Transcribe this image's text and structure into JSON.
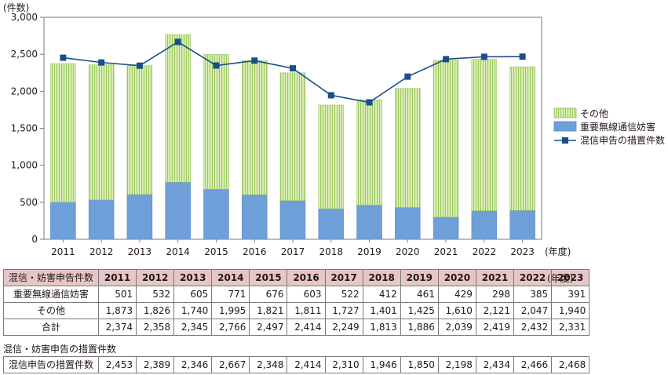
{
  "chart_data": {
    "type": "bar",
    "y_unit_label": "(件数)",
    "x_unit_label": "(年度)",
    "ylim": [
      0,
      3000
    ],
    "yticks": [
      "0",
      "500",
      "1,000",
      "1,500",
      "2,000",
      "2,500",
      "3,000"
    ],
    "ytick_values": [
      0,
      500,
      1000,
      1500,
      2000,
      2500,
      3000
    ],
    "categories": [
      "2011",
      "2012",
      "2013",
      "2014",
      "2015",
      "2016",
      "2017",
      "2018",
      "2019",
      "2020",
      "2021",
      "2022",
      "2023"
    ],
    "series": [
      {
        "name": "重要無線通信妨害",
        "kind": "bar",
        "color": "#6f9fd8",
        "values": [
          501,
          532,
          605,
          771,
          676,
          603,
          522,
          412,
          461,
          429,
          298,
          385,
          391
        ]
      },
      {
        "name": "その他",
        "kind": "bar",
        "color": "#c9e39a",
        "values": [
          1873,
          1826,
          1740,
          1995,
          1821,
          1811,
          1727,
          1401,
          1425,
          1610,
          2121,
          2047,
          1940
        ]
      },
      {
        "name": "混信申告の措置件数",
        "kind": "line",
        "color": "#1a4e8a",
        "values": [
          2453,
          2389,
          2346,
          2667,
          2348,
          2414,
          2310,
          1946,
          1850,
          2198,
          2434,
          2466,
          2468
        ]
      }
    ],
    "legend_position": "right",
    "grid": false
  },
  "table": {
    "header_label": "混信・妨害申告件数",
    "years": [
      "2011",
      "2012",
      "2013",
      "2014",
      "2015",
      "2016",
      "2017",
      "2018",
      "2019",
      "2020",
      "2021",
      "2022",
      "2023"
    ],
    "unit": "(年度)",
    "rows": [
      {
        "label": "重要無線通信妨害",
        "values": [
          "501",
          "532",
          "605",
          "771",
          "676",
          "603",
          "522",
          "412",
          "461",
          "429",
          "298",
          "385",
          "391"
        ]
      },
      {
        "label": "その他",
        "values": [
          "1,873",
          "1,826",
          "1,740",
          "1,995",
          "1,821",
          "1,811",
          "1,727",
          "1,401",
          "1,425",
          "1,610",
          "2,121",
          "2,047",
          "1,940"
        ]
      },
      {
        "label": "合計",
        "values": [
          "2,374",
          "2,358",
          "2,345",
          "2,766",
          "2,497",
          "2,414",
          "2,249",
          "1,813",
          "1,886",
          "2,039",
          "2,419",
          "2,432",
          "2,331"
        ]
      }
    ],
    "section2_title": "混信・妨害申告の措置件数",
    "row2": {
      "label": "混信申告の措置件数",
      "values": [
        "2,453",
        "2,389",
        "2,346",
        "2,667",
        "2,348",
        "2,414",
        "2,310",
        "1,946",
        "1,850",
        "2,198",
        "2,434",
        "2,466",
        "2,468"
      ]
    }
  }
}
